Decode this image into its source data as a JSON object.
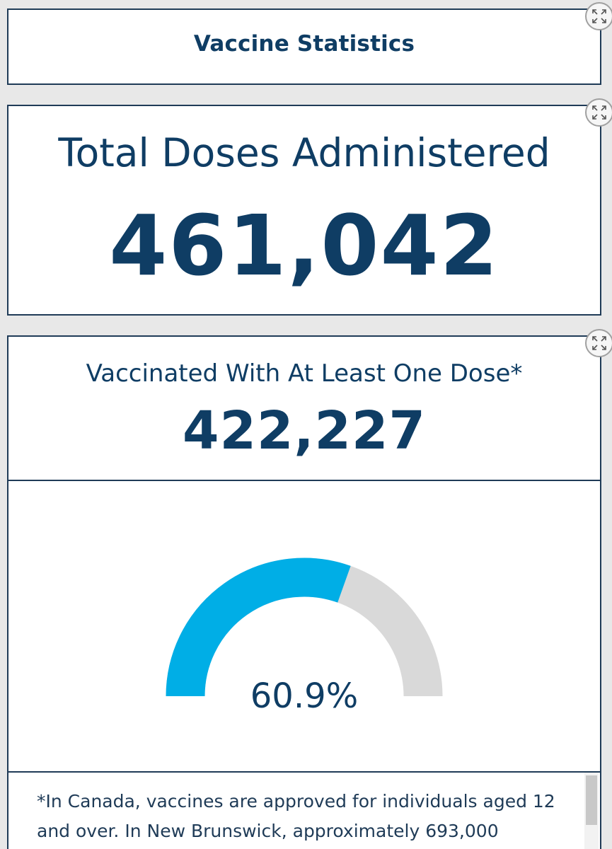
{
  "header": {
    "title": "Vaccine Statistics"
  },
  "total_doses": {
    "label": "Total Doses Administered",
    "value": "461,042"
  },
  "one_dose": {
    "label": "Vaccinated With At Least One Dose*",
    "value": "422,227",
    "percent_label": "60.9%",
    "percent": 60.9,
    "footnote": "*In Canada, vaccines are approved for individuals aged 12 and over.  In New Brunswick, approximately 693,000"
  },
  "icons": {
    "expand": "expand-icon"
  },
  "colors": {
    "text": "#0f3d64",
    "gauge_fill": "#00aee6",
    "gauge_track": "#d9d9d9"
  }
}
